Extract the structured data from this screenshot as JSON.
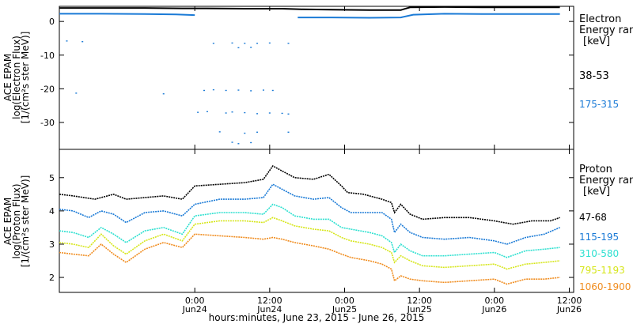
{
  "colors": {
    "black": "#000000",
    "blue": "#1a7ad6",
    "cyan": "#2ee0d0",
    "yellow": "#d6e61a",
    "orange": "#f08c1e"
  },
  "xaxis": {
    "label": "hours:minutes, June 23, 2015 - June 26, 2015",
    "range_hours": [
      -21.7,
      60.7
    ],
    "ticks": [
      {
        "h": 0,
        "time": "0:00",
        "date": "Jun24"
      },
      {
        "h": 12,
        "time": "12:00",
        "date": "Jun24"
      },
      {
        "h": 24,
        "time": "0:00",
        "date": "Jun25"
      },
      {
        "h": 36,
        "time": "12:00",
        "date": "Jun25"
      },
      {
        "h": 48,
        "time": "0:00",
        "date": "Jun26"
      },
      {
        "h": 60,
        "time": "12:00",
        "date": "Jun26"
      }
    ]
  },
  "electron_panel": {
    "ylabel_1": "ACE EPAM",
    "ylabel_2": "log(Electron Flux)",
    "ylabel_3": "[1/(cm²s ster MeV)]",
    "ylim": [
      -38,
      4.5
    ],
    "yticks": [
      0,
      -10,
      -20,
      -30
    ],
    "ytick_labels": [
      "0",
      "-10",
      "-20",
      "-30"
    ],
    "legend_title_1": "Electron",
    "legend_title_2": "Energy ran",
    "legend_unit": "[keV]",
    "channels": [
      "38-53",
      "175-315"
    ]
  },
  "proton_panel": {
    "ylabel_1": "ACE EPAM",
    "ylabel_2": "log(Proton Flux)",
    "ylabel_3": "[1/(cm²s ster MeV)]",
    "ylim": [
      1.55,
      5.85
    ],
    "yticks": [
      2,
      3,
      4,
      5
    ],
    "ytick_labels": [
      "2",
      "3",
      "4",
      "5"
    ],
    "legend_title_1": "Proton",
    "legend_title_2": "Energy ran",
    "legend_unit": "[keV]",
    "channels": [
      "47-68",
      "115-195",
      "310-580",
      "795-1193",
      "1060-1900"
    ]
  },
  "chart_data": [
    {
      "type": "scatter",
      "panel": "electron",
      "x_units": "hours since 2015-06-24 00:00",
      "series": [
        {
          "name": "38-53",
          "color": "#000000",
          "points": [
            [
              -21.7,
              4.0
            ],
            [
              -15,
              4.0
            ],
            [
              -8,
              4.0
            ],
            [
              -2,
              3.9
            ],
            [
              2,
              3.9
            ],
            [
              8,
              3.8
            ],
            [
              14,
              3.8
            ],
            [
              17,
              3.6
            ],
            [
              22,
              3.5
            ],
            [
              28,
              3.4
            ],
            [
              33,
              3.4
            ],
            [
              34.5,
              4.2
            ],
            [
              40,
              4.3
            ],
            [
              46,
              4.2
            ],
            [
              52,
              4.2
            ],
            [
              56,
              4.2
            ],
            [
              58.5,
              4.2
            ]
          ]
        },
        {
          "name": "175-315",
          "color": "#1a7ad6",
          "points": [
            [
              -21.7,
              2.3
            ],
            [
              -15,
              2.3
            ],
            [
              -8,
              2.2
            ],
            [
              -3,
              2.1
            ],
            [
              0,
              1.9
            ],
            [
              16.5,
              1.2
            ],
            [
              22,
              1.2
            ],
            [
              28,
              1.1
            ],
            [
              33,
              1.2
            ],
            [
              35,
              2.0
            ],
            [
              40,
              2.3
            ],
            [
              46,
              2.2
            ],
            [
              52,
              2.2
            ],
            [
              56,
              2.2
            ],
            [
              58.5,
              2.2
            ]
          ]
        },
        {
          "name": "175-315 sparse",
          "color": "#1a7ad6",
          "points": [
            [
              -20.5,
              -5.8
            ],
            [
              -18,
              -6.0
            ],
            [
              3,
              -6.5
            ],
            [
              6,
              -6.4
            ],
            [
              8,
              -6.5
            ],
            [
              10,
              -6.5
            ],
            [
              12,
              -6.4
            ],
            [
              15,
              -6.5
            ],
            [
              7,
              -7.8
            ],
            [
              9,
              -7.7
            ],
            [
              -19,
              -21.3
            ],
            [
              -5,
              -21.5
            ],
            [
              1.5,
              -20.5
            ],
            [
              3,
              -20.3
            ],
            [
              5,
              -20.5
            ],
            [
              7,
              -20.4
            ],
            [
              9,
              -20.6
            ],
            [
              11,
              -20.4
            ],
            [
              12.5,
              -20.5
            ],
            [
              0.5,
              -27.0
            ],
            [
              2,
              -26.8
            ],
            [
              5,
              -27.2
            ],
            [
              6,
              -26.9
            ],
            [
              8,
              -27.1
            ],
            [
              10,
              -27.4
            ],
            [
              12,
              -27.2
            ],
            [
              14,
              -27.3
            ],
            [
              15,
              -27.5
            ],
            [
              4,
              -32.8
            ],
            [
              8,
              -33.2
            ],
            [
              10,
              -32.9
            ],
            [
              15,
              -32.9
            ],
            [
              6,
              -35.9
            ],
            [
              7,
              -36.3
            ],
            [
              9,
              -36.0
            ]
          ]
        }
      ]
    },
    {
      "type": "line",
      "panel": "proton",
      "x_units": "hours since 2015-06-24 00:00",
      "series": [
        {
          "name": "47-68",
          "color": "#000000",
          "points": [
            [
              -21.7,
              4.5
            ],
            [
              -19.5,
              4.45
            ],
            [
              -16,
              4.35
            ],
            [
              -13,
              4.5
            ],
            [
              -11,
              4.35
            ],
            [
              -8,
              4.4
            ],
            [
              -5,
              4.45
            ],
            [
              -2,
              4.35
            ],
            [
              0,
              4.75
            ],
            [
              4,
              4.8
            ],
            [
              8,
              4.85
            ],
            [
              11,
              4.95
            ],
            [
              12.5,
              5.35
            ],
            [
              14,
              5.2
            ],
            [
              16,
              5.0
            ],
            [
              19,
              4.95
            ],
            [
              21.5,
              5.1
            ],
            [
              23.5,
              4.75
            ],
            [
              24.5,
              4.55
            ],
            [
              27,
              4.5
            ],
            [
              30,
              4.35
            ],
            [
              31.5,
              4.25
            ],
            [
              32,
              3.95
            ],
            [
              33,
              4.2
            ],
            [
              34.5,
              3.9
            ],
            [
              36.5,
              3.75
            ],
            [
              40,
              3.8
            ],
            [
              44,
              3.8
            ],
            [
              48,
              3.7
            ],
            [
              51,
              3.6
            ],
            [
              54,
              3.7
            ],
            [
              57,
              3.7
            ],
            [
              58.5,
              3.8
            ]
          ]
        },
        {
          "name": "115-195",
          "color": "#1a7ad6",
          "points": [
            [
              -21.7,
              4.05
            ],
            [
              -19.5,
              4.0
            ],
            [
              -17,
              3.8
            ],
            [
              -15,
              4.0
            ],
            [
              -13,
              3.9
            ],
            [
              -11,
              3.65
            ],
            [
              -8,
              3.95
            ],
            [
              -5,
              4.0
            ],
            [
              -2,
              3.85
            ],
            [
              0,
              4.2
            ],
            [
              4,
              4.35
            ],
            [
              8,
              4.35
            ],
            [
              11,
              4.4
            ],
            [
              12.5,
              4.8
            ],
            [
              14,
              4.65
            ],
            [
              16,
              4.45
            ],
            [
              19,
              4.35
            ],
            [
              21.5,
              4.4
            ],
            [
              23.5,
              4.1
            ],
            [
              25,
              3.95
            ],
            [
              28,
              3.95
            ],
            [
              30,
              3.95
            ],
            [
              31.5,
              3.75
            ],
            [
              32,
              3.35
            ],
            [
              33,
              3.6
            ],
            [
              34.5,
              3.35
            ],
            [
              36.5,
              3.2
            ],
            [
              40,
              3.15
            ],
            [
              44,
              3.2
            ],
            [
              48,
              3.1
            ],
            [
              50,
              3.0
            ],
            [
              53,
              3.2
            ],
            [
              56,
              3.3
            ],
            [
              58.5,
              3.5
            ]
          ]
        },
        {
          "name": "310-580",
          "color": "#2ee0d0",
          "points": [
            [
              -21.7,
              3.4
            ],
            [
              -19.5,
              3.35
            ],
            [
              -17,
              3.2
            ],
            [
              -15,
              3.5
            ],
            [
              -13,
              3.3
            ],
            [
              -11,
              3.05
            ],
            [
              -8,
              3.4
            ],
            [
              -5,
              3.5
            ],
            [
              -2,
              3.3
            ],
            [
              0,
              3.85
            ],
            [
              4,
              3.95
            ],
            [
              8,
              3.95
            ],
            [
              11,
              3.9
            ],
            [
              12.5,
              4.2
            ],
            [
              14,
              4.1
            ],
            [
              16,
              3.85
            ],
            [
              19,
              3.75
            ],
            [
              21.5,
              3.75
            ],
            [
              23.5,
              3.5
            ],
            [
              25,
              3.45
            ],
            [
              28,
              3.35
            ],
            [
              30,
              3.25
            ],
            [
              31.5,
              3.05
            ],
            [
              32,
              2.75
            ],
            [
              33,
              3.0
            ],
            [
              34.5,
              2.8
            ],
            [
              36.5,
              2.65
            ],
            [
              40,
              2.65
            ],
            [
              44,
              2.7
            ],
            [
              48,
              2.75
            ],
            [
              50,
              2.6
            ],
            [
              53,
              2.8
            ],
            [
              56,
              2.85
            ],
            [
              58.5,
              2.9
            ]
          ]
        },
        {
          "name": "795-1193",
          "color": "#d6e61a",
          "points": [
            [
              -21.7,
              3.05
            ],
            [
              -19.5,
              3.0
            ],
            [
              -17,
              2.9
            ],
            [
              -15,
              3.3
            ],
            [
              -13,
              2.95
            ],
            [
              -11,
              2.7
            ],
            [
              -8,
              3.1
            ],
            [
              -5,
              3.3
            ],
            [
              -2,
              3.1
            ],
            [
              0,
              3.6
            ],
            [
              4,
              3.7
            ],
            [
              8,
              3.7
            ],
            [
              11,
              3.65
            ],
            [
              12.5,
              3.8
            ],
            [
              14,
              3.7
            ],
            [
              16,
              3.55
            ],
            [
              19,
              3.45
            ],
            [
              21.5,
              3.4
            ],
            [
              23.5,
              3.2
            ],
            [
              25,
              3.1
            ],
            [
              28,
              3.0
            ],
            [
              30,
              2.9
            ],
            [
              31.5,
              2.75
            ],
            [
              32,
              2.45
            ],
            [
              33,
              2.65
            ],
            [
              34.5,
              2.5
            ],
            [
              36.5,
              2.35
            ],
            [
              40,
              2.3
            ],
            [
              44,
              2.35
            ],
            [
              48,
              2.4
            ],
            [
              50,
              2.25
            ],
            [
              53,
              2.4
            ],
            [
              56,
              2.45
            ],
            [
              58.5,
              2.5
            ]
          ]
        },
        {
          "name": "1060-1900",
          "color": "#f08c1e",
          "points": [
            [
              -21.7,
              2.75
            ],
            [
              -19.5,
              2.7
            ],
            [
              -17,
              2.65
            ],
            [
              -15,
              3.0
            ],
            [
              -13,
              2.7
            ],
            [
              -11,
              2.45
            ],
            [
              -8,
              2.85
            ],
            [
              -5,
              3.05
            ],
            [
              -2,
              2.9
            ],
            [
              0,
              3.3
            ],
            [
              4,
              3.25
            ],
            [
              8,
              3.2
            ],
            [
              11,
              3.15
            ],
            [
              12.5,
              3.2
            ],
            [
              14,
              3.15
            ],
            [
              16,
              3.05
            ],
            [
              19,
              2.95
            ],
            [
              21.5,
              2.85
            ],
            [
              23.5,
              2.7
            ],
            [
              25,
              2.6
            ],
            [
              28,
              2.5
            ],
            [
              30,
              2.4
            ],
            [
              31.5,
              2.25
            ],
            [
              32,
              1.9
            ],
            [
              33,
              2.05
            ],
            [
              34.5,
              1.95
            ],
            [
              36.5,
              1.9
            ],
            [
              40,
              1.85
            ],
            [
              44,
              1.9
            ],
            [
              48,
              1.95
            ],
            [
              50,
              1.8
            ],
            [
              53,
              1.95
            ],
            [
              56,
              1.95
            ],
            [
              58.5,
              2.0
            ]
          ]
        }
      ]
    }
  ]
}
